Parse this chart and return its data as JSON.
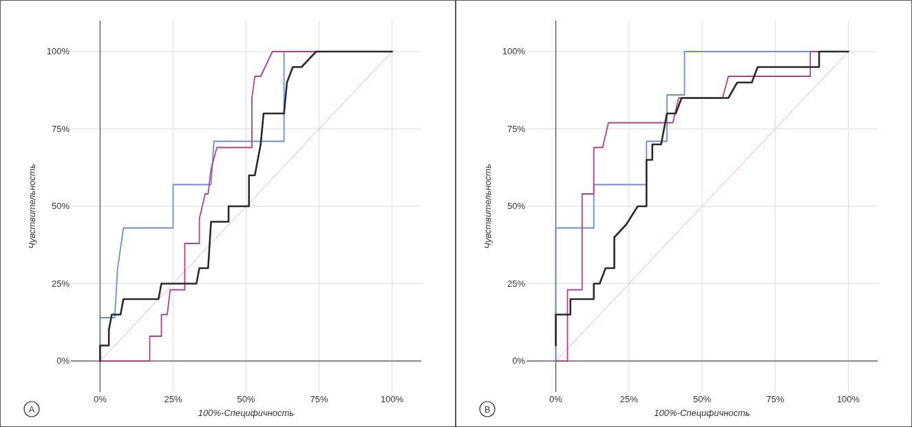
{
  "chart_data": [
    {
      "type": "line",
      "ylabel": "Чувствительность",
      "xlabel": "100%-Специфичность",
      "annotations": [
        "A"
      ],
      "xlim": [
        -10,
        110
      ],
      "ylim": [
        -10,
        110
      ],
      "xticks": [
        {
          "value": 0,
          "label": "0%"
        },
        {
          "value": 25,
          "label": "25%"
        },
        {
          "value": 50,
          "label": "50%"
        },
        {
          "value": 75,
          "label": "75%"
        },
        {
          "value": 100,
          "label": "100%"
        }
      ],
      "yticks": [
        {
          "value": 0,
          "label": "0%"
        },
        {
          "value": 25,
          "label": "25%"
        },
        {
          "value": 50,
          "label": "50%"
        },
        {
          "value": 75,
          "label": "75%"
        },
        {
          "value": 100,
          "label": "100%"
        }
      ],
      "grid": true,
      "line_style": "solid",
      "series": [
        {
          "color": "#f2b3c6",
          "x": [
            0,
            100
          ],
          "values": [
            0,
            100
          ]
        },
        {
          "color": "#6a8fd0",
          "x": [
            0,
            0,
            5,
            6,
            8,
            25,
            25,
            38,
            39,
            63,
            63,
            100
          ],
          "values": [
            0,
            14,
            14,
            30,
            43,
            43,
            57,
            57,
            71,
            71,
            100,
            100
          ]
        },
        {
          "color": "#b0408e",
          "x": [
            0,
            17,
            17,
            21,
            21,
            23,
            24,
            29,
            29,
            34,
            34,
            36,
            37,
            38,
            40,
            52,
            52,
            53,
            55,
            59,
            100
          ],
          "values": [
            0,
            0,
            8,
            8,
            15,
            15,
            23,
            23,
            38,
            38,
            46,
            54,
            54,
            62,
            69,
            69,
            85,
            92,
            92,
            100,
            100
          ]
        },
        {
          "color": "#2a2a2a",
          "x": [
            0,
            0,
            3,
            3,
            4,
            7,
            8,
            20,
            21,
            33,
            34,
            37,
            38,
            44,
            44,
            51,
            51,
            53,
            55,
            56,
            63,
            64,
            66,
            69,
            74,
            100
          ],
          "values": [
            0,
            5,
            5,
            10,
            15,
            15,
            20,
            20,
            25,
            25,
            30,
            30,
            45,
            45,
            50,
            50,
            60,
            60,
            70,
            80,
            80,
            90,
            95,
            95,
            100,
            100
          ]
        }
      ]
    },
    {
      "type": "line",
      "ylabel": "Чувствительность",
      "xlabel": "100%-Специфичность",
      "annotations": [
        "B"
      ],
      "xlim": [
        -10,
        110
      ],
      "ylim": [
        -10,
        110
      ],
      "xticks": [
        {
          "value": 0,
          "label": "0%"
        },
        {
          "value": 25,
          "label": "25%"
        },
        {
          "value": 50,
          "label": "50%"
        },
        {
          "value": 75,
          "label": "75%"
        },
        {
          "value": 100,
          "label": "100%"
        }
      ],
      "yticks": [
        {
          "value": 0,
          "label": "0%"
        },
        {
          "value": 25,
          "label": "25%"
        },
        {
          "value": 50,
          "label": "50%"
        },
        {
          "value": 75,
          "label": "75%"
        },
        {
          "value": 100,
          "label": "100%"
        }
      ],
      "grid": true,
      "line_style": "solid",
      "series": [
        {
          "color": "#f2b3c6",
          "x": [
            0,
            100
          ],
          "values": [
            0,
            100
          ]
        },
        {
          "color": "#6a8fd0",
          "x": [
            0,
            0,
            13,
            13,
            31,
            31,
            38,
            38,
            44,
            44,
            100
          ],
          "values": [
            0,
            43,
            43,
            57,
            57,
            71,
            71,
            86,
            86,
            100,
            100
          ]
        },
        {
          "color": "#b0408e",
          "x": [
            0,
            4,
            4,
            9,
            9,
            13,
            13,
            16,
            18,
            40,
            42,
            57,
            59,
            87,
            87,
            100
          ],
          "values": [
            0,
            0,
            23,
            23,
            54,
            54,
            69,
            69,
            77,
            77,
            85,
            85,
            92,
            92,
            100,
            100
          ]
        },
        {
          "color": "#2a2a2a",
          "x": [
            0,
            0,
            5,
            5,
            13,
            13,
            15,
            17,
            20,
            20,
            24,
            26,
            28,
            31,
            31,
            33,
            33,
            36,
            38,
            41,
            43,
            59,
            62,
            67,
            69,
            90,
            90,
            100
          ],
          "values": [
            5,
            15,
            15,
            20,
            20,
            25,
            25,
            30,
            30,
            40,
            44,
            47,
            50,
            50,
            65,
            65,
            70,
            70,
            80,
            80,
            85,
            85,
            90,
            90,
            95,
            95,
            100,
            100
          ]
        }
      ]
    }
  ]
}
